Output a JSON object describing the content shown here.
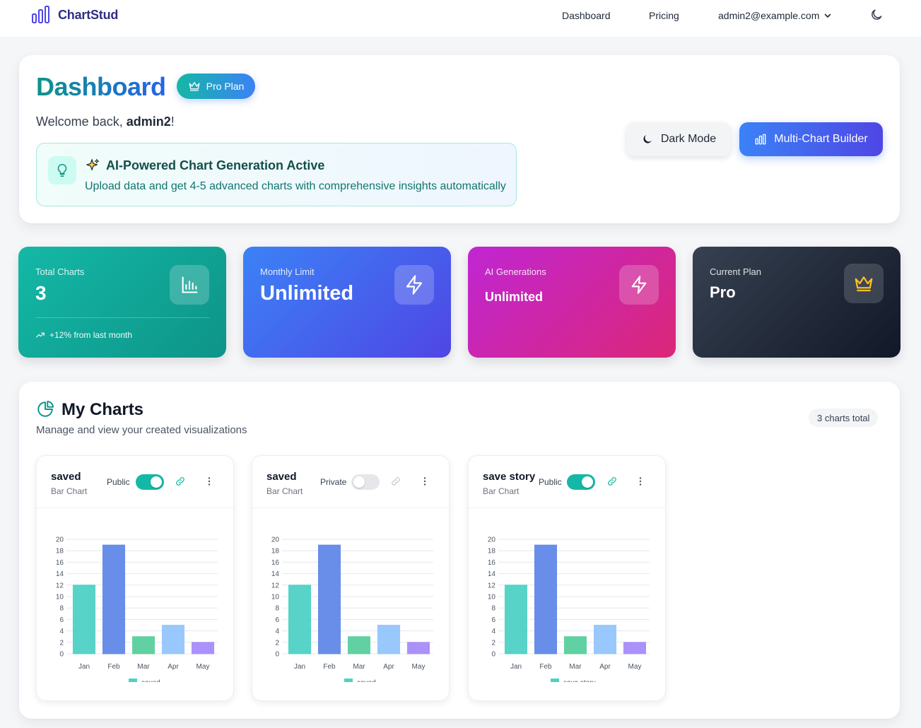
{
  "nav": {
    "brand": "ChartStud",
    "links": [
      "Dashboard",
      "Pricing"
    ],
    "user_email": "admin2@example.com"
  },
  "header": {
    "title": "Dashboard",
    "plan_badge": "Pro Plan",
    "welcome_prefix": "Welcome back, ",
    "username": "admin2",
    "welcome_suffix": "!",
    "ai_title": "AI-Powered Chart Generation Active",
    "ai_desc": "Upload data and get 4-5 advanced charts with comprehensive insights automatically",
    "dark_mode_button": "Dark Mode",
    "multi_chart_button": "Multi-Chart Builder"
  },
  "stats": [
    {
      "label": "Total Charts",
      "value": "3",
      "trend": "+12% from last month",
      "icon": "bar-chart-icon"
    },
    {
      "label": "Monthly Limit",
      "value": "Unlimited",
      "icon": "lightning-icon"
    },
    {
      "label": "AI Generations",
      "value": "Unlimited",
      "icon": "lightning-icon"
    },
    {
      "label": "Current Plan",
      "value": "Pro",
      "icon": "crown-icon"
    }
  ],
  "my_charts": {
    "title": "My Charts",
    "subtitle": "Manage and view your created visualizations",
    "count_badge": "3 charts total",
    "cards": [
      {
        "title": "saved",
        "type": "Bar Chart",
        "visibility": "Public",
        "is_public": true
      },
      {
        "title": "saved",
        "type": "Bar Chart",
        "visibility": "Private",
        "is_public": false
      },
      {
        "title": "save story",
        "type": "Bar Chart",
        "visibility": "Public",
        "is_public": true
      }
    ]
  },
  "colors": {
    "teal": "#14b8a6",
    "blue": "#3b82f6",
    "indigo": "#4f46e5",
    "magenta": "#c026d3",
    "pink": "#db2777",
    "dark": "#1f2937",
    "gold": "#fbbf24"
  },
  "chart_data": [
    {
      "type": "bar",
      "categories": [
        "Jan",
        "Feb",
        "Mar",
        "Apr",
        "May"
      ],
      "series": [
        {
          "name": "saved",
          "values": [
            12,
            19,
            3,
            5,
            2
          ]
        }
      ],
      "bar_colors": [
        "#4fd1c5",
        "#6088e8",
        "#58cf9e",
        "#93c5fd",
        "#a78bfa"
      ],
      "ylim": [
        0,
        20
      ],
      "yticks": [
        0,
        2,
        4,
        6,
        8,
        10,
        12,
        14,
        16,
        18,
        20
      ],
      "title": "",
      "xlabel": "",
      "ylabel": "",
      "grid": true,
      "legend": "bottom"
    },
    {
      "type": "bar",
      "categories": [
        "Jan",
        "Feb",
        "Mar",
        "Apr",
        "May"
      ],
      "series": [
        {
          "name": "saved",
          "values": [
            12,
            19,
            3,
            5,
            2
          ]
        }
      ],
      "bar_colors": [
        "#4fd1c5",
        "#6088e8",
        "#58cf9e",
        "#93c5fd",
        "#a78bfa"
      ],
      "ylim": [
        0,
        20
      ],
      "yticks": [
        0,
        2,
        4,
        6,
        8,
        10,
        12,
        14,
        16,
        18,
        20
      ],
      "title": "",
      "xlabel": "",
      "ylabel": "",
      "grid": true,
      "legend": "bottom"
    },
    {
      "type": "bar",
      "categories": [
        "Jan",
        "Feb",
        "Mar",
        "Apr",
        "May"
      ],
      "series": [
        {
          "name": "save story",
          "values": [
            12,
            19,
            3,
            5,
            2
          ]
        }
      ],
      "bar_colors": [
        "#4fd1c5",
        "#6088e8",
        "#58cf9e",
        "#93c5fd",
        "#a78bfa"
      ],
      "ylim": [
        0,
        20
      ],
      "yticks": [
        0,
        2,
        4,
        6,
        8,
        10,
        12,
        14,
        16,
        18,
        20
      ],
      "title": "",
      "xlabel": "",
      "ylabel": "",
      "grid": true,
      "legend": "bottom"
    }
  ]
}
